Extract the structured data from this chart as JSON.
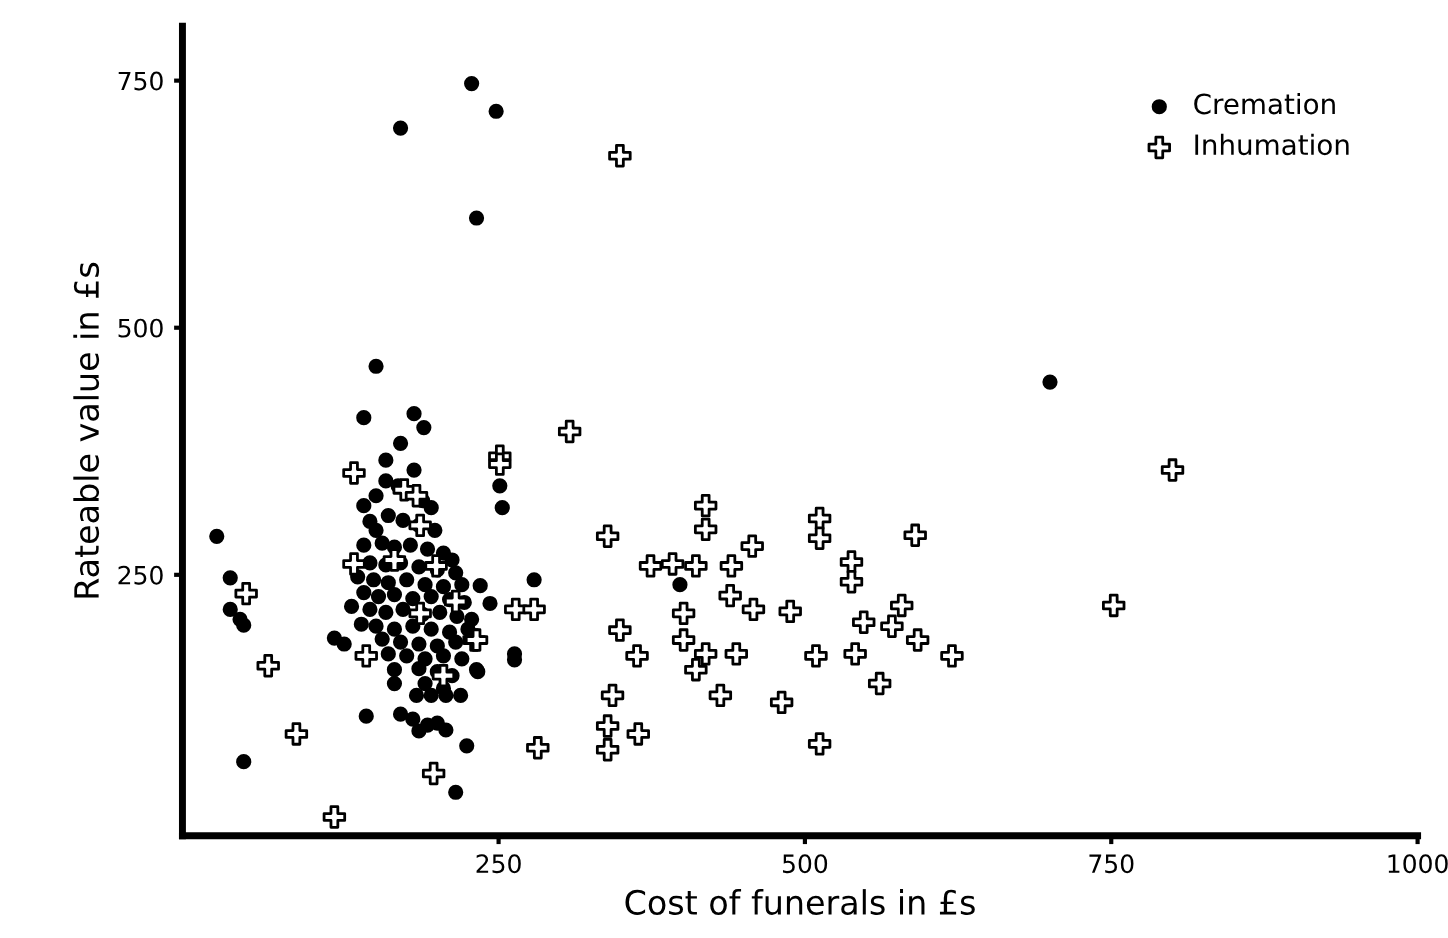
{
  "chart_data": {
    "type": "scatter",
    "xlabel": "Cost of funerals in £s",
    "ylabel": "Rateable value in £s",
    "xlim": [
      -8,
      1000
    ],
    "ylim": [
      -14,
      805
    ],
    "xticks": [
      250,
      500,
      750,
      1000
    ],
    "yticks": [
      250,
      500,
      750
    ],
    "grid": false,
    "legend": "top right",
    "series": [
      {
        "name": "Cremation",
        "color": "#000000",
        "marker": "circle",
        "x": [
          228,
          248,
          170,
          232,
          150,
          700,
          140,
          181,
          189,
          170,
          158,
          181,
          279,
          235,
          243,
          263,
          263,
          232,
          224,
          215,
          142,
          42,
          20,
          31,
          31,
          39,
          42,
          251,
          253,
          140,
          145,
          116,
          124,
          165,
          165,
          233,
          398,
          150,
          158,
          168,
          188,
          195,
          160,
          172,
          185,
          198,
          150,
          140,
          155,
          165,
          178,
          192,
          205,
          212,
          145,
          158,
          170,
          185,
          200,
          215,
          135,
          148,
          160,
          175,
          190,
          205,
          220,
          140,
          152,
          165,
          180,
          195,
          210,
          222,
          130,
          145,
          158,
          172,
          188,
          202,
          216,
          228,
          138,
          150,
          165,
          180,
          195,
          210,
          225,
          155,
          170,
          185,
          200,
          215,
          160,
          175,
          190,
          205,
          220,
          185,
          200,
          212,
          190,
          205,
          183,
          195,
          207,
          219,
          170,
          180,
          192,
          207,
          185,
          200
        ],
        "values": [
          747,
          719,
          702,
          611,
          461,
          445,
          409,
          413,
          399,
          383,
          366,
          356,
          245,
          239,
          221,
          170,
          164,
          154,
          77,
          30,
          107,
          61,
          289,
          247,
          215,
          205,
          199,
          340,
          318,
          320,
          304,
          186,
          180,
          154,
          140,
          152,
          240,
          330,
          345,
          340,
          325,
          318,
          310,
          305,
          300,
          295,
          295,
          280,
          282,
          278,
          280,
          276,
          272,
          265,
          262,
          260,
          262,
          258,
          255,
          252,
          248,
          245,
          242,
          245,
          240,
          238,
          240,
          232,
          228,
          230,
          226,
          228,
          225,
          222,
          218,
          215,
          212,
          215,
          210,
          212,
          208,
          205,
          200,
          198,
          195,
          198,
          195,
          192,
          195,
          185,
          182,
          180,
          178,
          182,
          170,
          168,
          165,
          168,
          165,
          155,
          152,
          148,
          140,
          135,
          128,
          128,
          128,
          128,
          109,
          104,
          98,
          93,
          92,
          100
        ]
      },
      {
        "name": "Inhumation",
        "color": "#000000",
        "marker": "cross",
        "x": [
          349,
          800,
          308,
          251,
          512,
          512,
          590,
          457,
          440,
          538,
          538,
          439,
          458,
          488,
          579,
          571,
          548,
          592,
          541,
          509,
          620,
          444,
          561,
          481,
          512,
          752,
          419,
          419,
          339,
          374,
          392,
          411,
          401,
          349,
          363,
          401,
          419,
          411,
          431,
          343,
          339,
          339,
          364,
          282,
          264,
          279,
          230,
          197,
          116,
          85,
          62,
          44,
          132,
          142,
          251,
          132,
          173,
          183,
          186,
          165,
          199,
          186,
          215,
          205,
          232
        ],
        "values": [
          674,
          356,
          395,
          370,
          307,
          287,
          290,
          279,
          259,
          263,
          243,
          229,
          215,
          213,
          219,
          198,
          202,
          184,
          170,
          168,
          168,
          170,
          140,
          121,
          79,
          219,
          320,
          296,
          289,
          259,
          261,
          259,
          211,
          194,
          168,
          184,
          170,
          154,
          128,
          128,
          97,
          73,
          89,
          75,
          215,
          215,
          184,
          49,
          5,
          89,
          158,
          231,
          261,
          168,
          362,
          353,
          336,
          330,
          300,
          265,
          259,
          211,
          223,
          148,
          184
        ]
      }
    ]
  }
}
